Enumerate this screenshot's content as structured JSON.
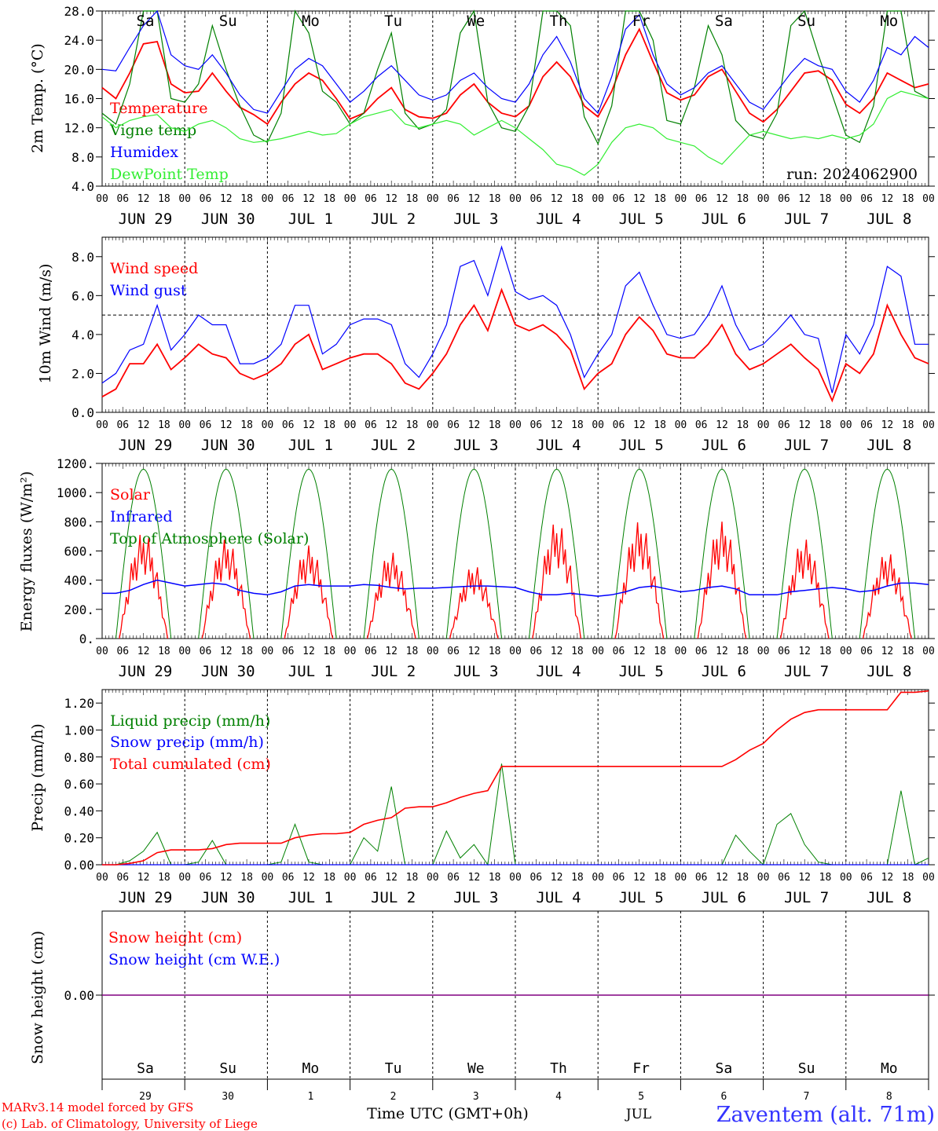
{
  "colors": {
    "red": "#ff0000",
    "green": "#008000",
    "blue": "#0000ff",
    "light_green": "#33ee33",
    "weekend": "#ff0000",
    "weekday": "#000000",
    "purple": "#800080"
  },
  "hour_ticks": [
    "00",
    "06",
    "12",
    "18"
  ],
  "date_labels": [
    "JUN 29",
    "JUN 30",
    "JUL  1",
    "JUL  2",
    "JUL  3",
    "JUL  4",
    "JUL  5",
    "JUL  6",
    "JUL  7",
    "JUL  8"
  ],
  "weekdays": [
    "Sa",
    "Su",
    "Mo",
    "Tu",
    "We",
    "Th",
    "Fr",
    "Sa",
    "Su",
    "Mo"
  ],
  "weekend_flags": [
    true,
    true,
    false,
    false,
    false,
    false,
    false,
    true,
    true,
    false
  ],
  "day_numbers": [
    "29",
    "30",
    "1",
    "2",
    "3",
    "4",
    "5",
    "6",
    "7",
    "8"
  ],
  "footer": {
    "credit_line1": "MARv3.14 model forced by GFS",
    "credit_line2": "(c) Lab. of Climatology, University of Liege",
    "time_label": "Time UTC (GMT+0h)",
    "month_label": "JUL",
    "station": "Zaventem (alt. 71m)"
  },
  "chart_data": [
    {
      "type": "line",
      "ylabel": "2m Temp. (°C)",
      "ylim": [
        4,
        28
      ],
      "yticks": [
        "4.0",
        "8.0",
        "12.0",
        "16.0",
        "20.0",
        "24.0",
        "28.0"
      ],
      "run_label": "run: 2024062900",
      "x_hours_step": 6,
      "series": [
        {
          "name": "Temperature",
          "color": "red",
          "values": [
            17.5,
            16.0,
            19.5,
            23.5,
            23.8,
            18.0,
            16.8,
            17.0,
            19.5,
            17.0,
            14.8,
            13.8,
            12.5,
            15.5,
            18.0,
            19.5,
            18.5,
            16.0,
            13.2,
            14.0,
            16.0,
            17.5,
            14.5,
            13.5,
            13.3,
            14.0,
            16.5,
            18.0,
            15.5,
            14.0,
            13.5,
            15.0,
            19.0,
            21.0,
            19.0,
            15.0,
            13.5,
            17.0,
            22.0,
            25.5,
            21.0,
            16.8,
            15.8,
            16.5,
            19.0,
            20.0,
            17.0,
            14.0,
            12.8,
            14.5,
            17.0,
            19.5,
            19.8,
            18.5,
            15.2,
            14.0,
            16.0,
            19.5,
            18.5,
            17.5,
            18.0
          ]
        },
        {
          "name": "Vigne temp",
          "color": "green",
          "values": [
            14.0,
            12.5,
            18.0,
            30.0,
            28.0,
            16.0,
            15.5,
            18.0,
            26.0,
            20.0,
            15.0,
            11.0,
            10.0,
            14.0,
            29.0,
            25.0,
            17.0,
            15.5,
            12.5,
            14.0,
            20.0,
            25.0,
            14.0,
            11.8,
            12.5,
            14.5,
            25.0,
            30.0,
            15.5,
            12.0,
            11.5,
            15.0,
            28.0,
            31.0,
            26.0,
            13.5,
            9.8,
            15.0,
            30.0,
            31.0,
            24.0,
            13.0,
            12.5,
            17.5,
            26.0,
            22.0,
            13.0,
            11.0,
            10.5,
            14.0,
            26.0,
            30.0,
            22.0,
            16.5,
            11.0,
            10.0,
            15.0,
            28.0,
            28.0,
            17.0,
            16.0
          ]
        },
        {
          "name": "Humidex",
          "color": "blue",
          "values": [
            20.0,
            19.8,
            23.0,
            26.0,
            28.0,
            22.0,
            20.5,
            20.0,
            22.0,
            19.5,
            16.5,
            14.5,
            14.0,
            17.0,
            20.0,
            21.5,
            20.5,
            18.0,
            15.5,
            17.0,
            19.0,
            20.5,
            18.5,
            16.5,
            15.8,
            16.5,
            18.5,
            19.5,
            17.5,
            16.0,
            15.5,
            18.0,
            22.0,
            24.5,
            21.0,
            16.0,
            14.0,
            19.0,
            25.5,
            27.5,
            22.0,
            18.0,
            16.5,
            17.5,
            19.5,
            20.5,
            18.0,
            15.5,
            14.5,
            17.0,
            19.5,
            21.5,
            20.5,
            20.0,
            17.0,
            15.5,
            18.5,
            23.0,
            22.0,
            24.5,
            23.0
          ]
        },
        {
          "name": "DewPoint Temp",
          "color": "light_green",
          "values": [
            13.5,
            12.0,
            13.0,
            13.5,
            13.8,
            12.0,
            11.5,
            12.5,
            13.0,
            12.0,
            10.5,
            10.0,
            10.2,
            10.5,
            11.0,
            11.5,
            11.0,
            11.2,
            12.5,
            13.5,
            14.0,
            14.5,
            12.5,
            12.0,
            12.5,
            13.0,
            12.5,
            11.0,
            12.0,
            13.0,
            12.0,
            10.5,
            9.0,
            7.0,
            6.5,
            5.5,
            7.0,
            10.0,
            12.0,
            12.5,
            12.0,
            10.5,
            10.0,
            9.5,
            8.0,
            7.0,
            9.0,
            11.0,
            11.5,
            11.0,
            10.5,
            10.8,
            10.5,
            11.0,
            10.5,
            11.0,
            12.5,
            16.0,
            17.0,
            16.5,
            16.0
          ]
        }
      ]
    },
    {
      "type": "line",
      "ylabel": "10m Wind (m/s)",
      "ylim": [
        0,
        9
      ],
      "yticks": [
        "0.0",
        "2.0",
        "4.0",
        "6.0",
        "8.0"
      ],
      "reference_line": 5.0,
      "x_hours_step": 6,
      "series": [
        {
          "name": "Wind speed",
          "color": "red",
          "values": [
            0.8,
            1.2,
            2.5,
            2.5,
            3.5,
            2.2,
            2.8,
            3.5,
            3.0,
            2.8,
            2.0,
            1.7,
            2.0,
            2.5,
            3.5,
            4.0,
            2.2,
            2.5,
            2.8,
            3.0,
            3.0,
            2.5,
            1.5,
            1.2,
            2.0,
            3.0,
            4.5,
            5.5,
            4.2,
            6.3,
            4.5,
            4.2,
            4.5,
            4.0,
            3.2,
            1.2,
            2.0,
            2.5,
            4.0,
            4.9,
            4.2,
            3.0,
            2.8,
            2.8,
            3.5,
            4.5,
            3.0,
            2.2,
            2.5,
            3.0,
            3.5,
            2.8,
            2.2,
            0.6,
            2.5,
            2.0,
            3.0,
            5.5,
            4.0,
            2.8,
            2.5
          ]
        },
        {
          "name": "Wind gust",
          "color": "blue",
          "values": [
            1.5,
            2.0,
            3.2,
            3.5,
            5.5,
            3.2,
            4.0,
            5.0,
            4.5,
            4.5,
            2.5,
            2.5,
            2.8,
            3.5,
            5.5,
            5.5,
            3.0,
            3.5,
            4.5,
            4.8,
            4.8,
            4.5,
            2.5,
            1.8,
            3.0,
            4.5,
            7.5,
            7.8,
            6.0,
            8.5,
            6.2,
            5.8,
            6.0,
            5.5,
            4.0,
            1.8,
            3.0,
            4.0,
            6.5,
            7.2,
            5.5,
            4.0,
            3.8,
            4.0,
            5.0,
            6.5,
            4.5,
            3.2,
            3.5,
            4.2,
            5.0,
            4.0,
            3.8,
            1.0,
            4.0,
            3.0,
            4.5,
            7.5,
            7.0,
            3.5,
            3.5
          ]
        }
      ]
    },
    {
      "type": "line",
      "ylabel": "Energy fluxes (W/m²)",
      "ylim": [
        0,
        1200
      ],
      "yticks": [
        "0.",
        "200.",
        "400.",
        "600.",
        "800.",
        "1000.",
        "1200."
      ],
      "x_hours_step": 6,
      "series": [
        {
          "name": "Solar",
          "color": "red",
          "peaks": [
            800,
            750,
            700,
            650,
            550,
            880,
            880,
            880,
            750,
            650
          ]
        },
        {
          "name": "Infrared",
          "color": "blue",
          "values": [
            310,
            310,
            330,
            370,
            400,
            380,
            360,
            370,
            380,
            370,
            330,
            310,
            300,
            320,
            360,
            370,
            360,
            360,
            360,
            370,
            365,
            350,
            340,
            345,
            345,
            350,
            355,
            360,
            360,
            355,
            350,
            320,
            300,
            300,
            310,
            300,
            290,
            300,
            320,
            350,
            360,
            340,
            320,
            330,
            350,
            360,
            340,
            300,
            300,
            300,
            320,
            330,
            340,
            350,
            340,
            320,
            330,
            360,
            380,
            380,
            370
          ]
        },
        {
          "name": "Top of Atmosphere (Solar)",
          "color": "green",
          "peak": 1160
        }
      ]
    },
    {
      "type": "line",
      "ylabel": "Precip (mm/h)",
      "ylim": [
        0,
        1.3
      ],
      "yticks": [
        "0.00",
        "0.20",
        "0.40",
        "0.60",
        "0.80",
        "1.00",
        "1.20"
      ],
      "x_hours_step": 6,
      "series": [
        {
          "name": "Liquid precip (mm/h)",
          "color": "green",
          "values": [
            0,
            0,
            0.03,
            0.1,
            0.24,
            0,
            0,
            0.02,
            0.18,
            0,
            0,
            0,
            0,
            0.02,
            0.3,
            0.02,
            0,
            0,
            0,
            0.2,
            0.1,
            0.58,
            0,
            0,
            0,
            0.25,
            0.05,
            0.15,
            0,
            0.75,
            0,
            0,
            0,
            0,
            0,
            0,
            0,
            0,
            0,
            0,
            0,
            0,
            0,
            0,
            0,
            0,
            0.22,
            0.1,
            0,
            0.3,
            0.38,
            0.15,
            0.02,
            0,
            0,
            0,
            0,
            0,
            0.55,
            0,
            0.05
          ]
        },
        {
          "name": "Snow precip (mm/h)",
          "color": "blue",
          "values": [
            0,
            0,
            0,
            0,
            0,
            0,
            0,
            0,
            0,
            0,
            0,
            0,
            0,
            0,
            0,
            0,
            0,
            0,
            0,
            0,
            0,
            0,
            0,
            0,
            0,
            0,
            0,
            0,
            0,
            0,
            0,
            0,
            0,
            0,
            0,
            0,
            0,
            0,
            0,
            0,
            0,
            0,
            0,
            0,
            0,
            0,
            0,
            0,
            0,
            0,
            0,
            0,
            0,
            0,
            0,
            0,
            0,
            0,
            0,
            0,
            0
          ]
        },
        {
          "name": "Total cumulated (cm)",
          "color": "red",
          "values": [
            0,
            0,
            0.01,
            0.03,
            0.09,
            0.11,
            0.11,
            0.11,
            0.12,
            0.15,
            0.16,
            0.16,
            0.16,
            0.16,
            0.2,
            0.22,
            0.23,
            0.23,
            0.24,
            0.3,
            0.33,
            0.35,
            0.42,
            0.43,
            0.43,
            0.46,
            0.5,
            0.53,
            0.55,
            0.73,
            0.73,
            0.73,
            0.73,
            0.73,
            0.73,
            0.73,
            0.73,
            0.73,
            0.73,
            0.73,
            0.73,
            0.73,
            0.73,
            0.73,
            0.73,
            0.73,
            0.78,
            0.85,
            0.9,
            1.0,
            1.08,
            1.13,
            1.15,
            1.15,
            1.15,
            1.15,
            1.15,
            1.15,
            1.28,
            1.28,
            1.29
          ]
        }
      ]
    },
    {
      "type": "line",
      "ylabel": "Snow height (cm)",
      "ylim": [
        -1,
        1
      ],
      "yticks": [
        "0.00"
      ],
      "x_hours_step": 6,
      "series": [
        {
          "name": "Snow height (cm)",
          "color": "red",
          "values": [
            0,
            0
          ]
        },
        {
          "name": "Snow height (cm W.E.)",
          "color": "blue",
          "values": [
            0,
            0
          ]
        }
      ]
    }
  ]
}
